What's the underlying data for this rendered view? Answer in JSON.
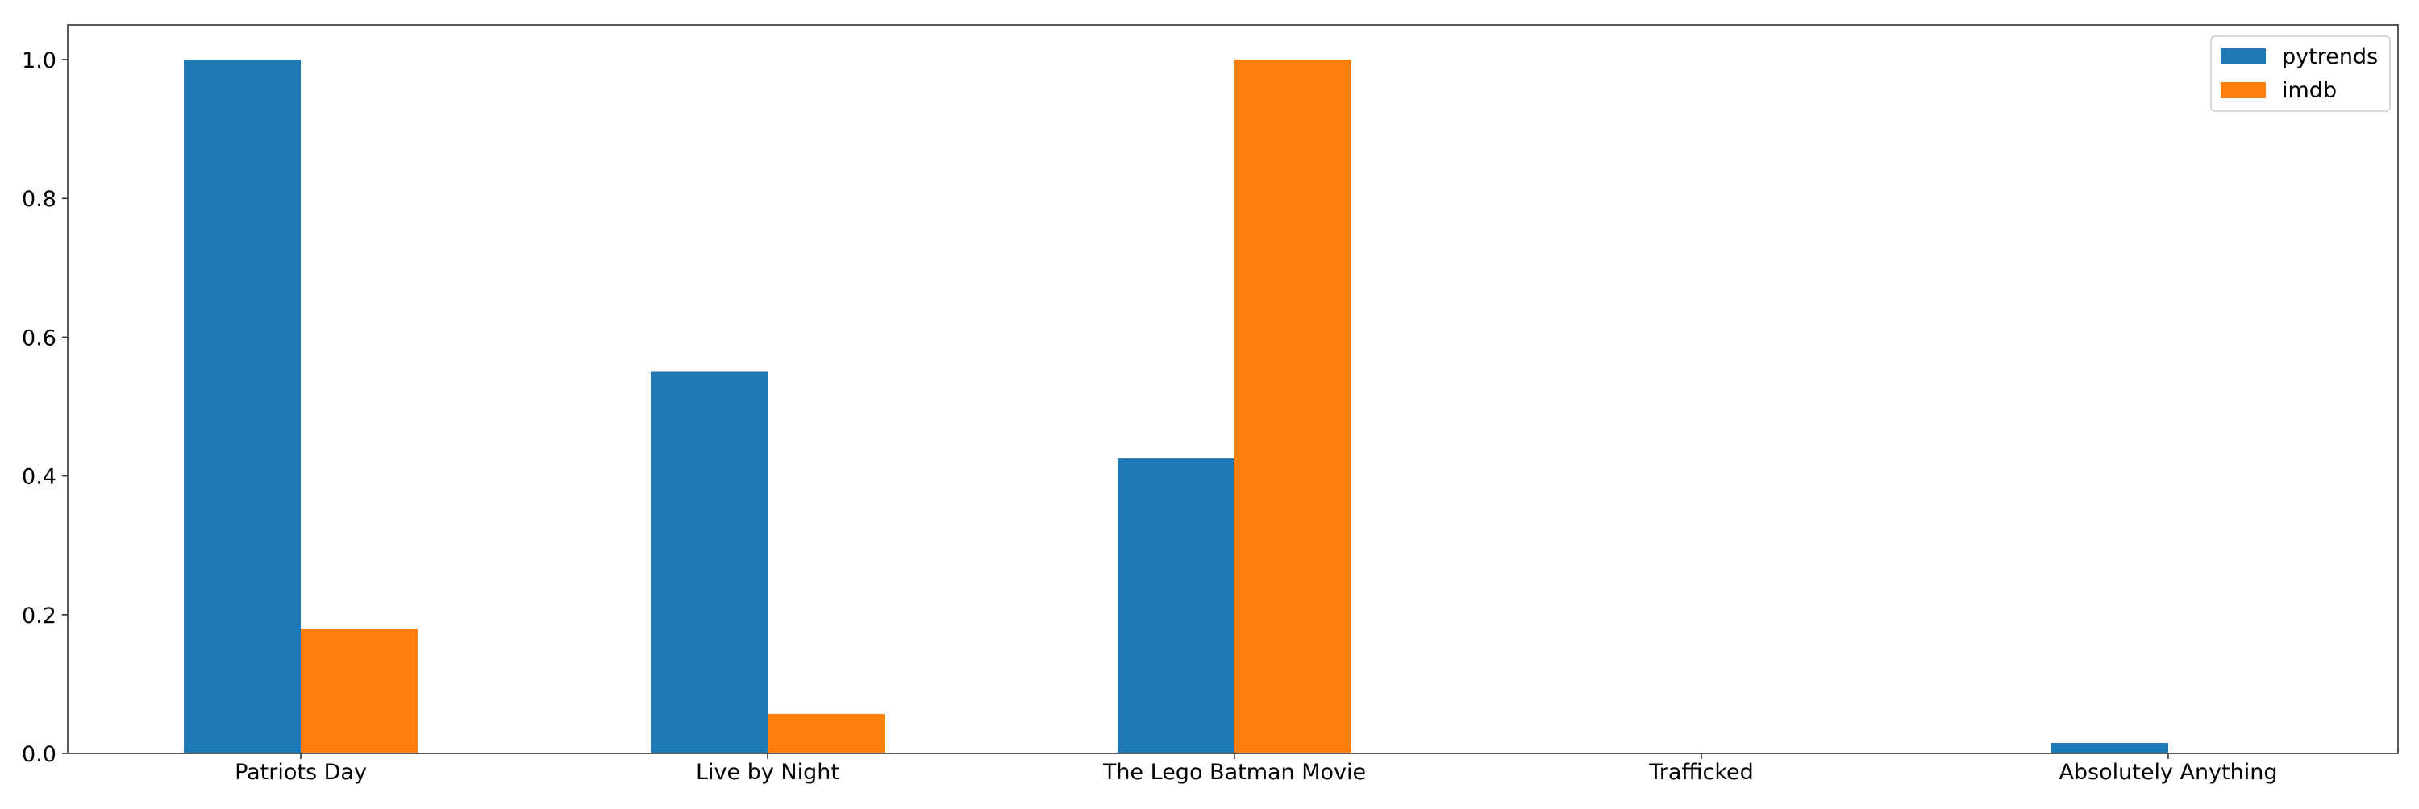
{
  "chart_data": {
    "type": "bar",
    "title": "",
    "xlabel": "",
    "ylabel": "",
    "categories": [
      "Patriots Day",
      "Live by Night",
      "The Lego Batman Movie",
      "Trafficked",
      "Absolutely Anything"
    ],
    "series": [
      {
        "name": "pytrends",
        "color": "#1f77b4",
        "values": [
          1.0,
          0.55,
          0.425,
          0.0,
          0.015
        ]
      },
      {
        "name": "imdb",
        "color": "#ff7f0e",
        "values": [
          0.18,
          0.057,
          1.0,
          0.0,
          0.0
        ]
      }
    ],
    "ylim": [
      0,
      1.05
    ],
    "yticks": [
      "0.0",
      "0.2",
      "0.4",
      "0.6",
      "0.8",
      "1.0"
    ],
    "grid": false,
    "legend_position": "top-right"
  }
}
